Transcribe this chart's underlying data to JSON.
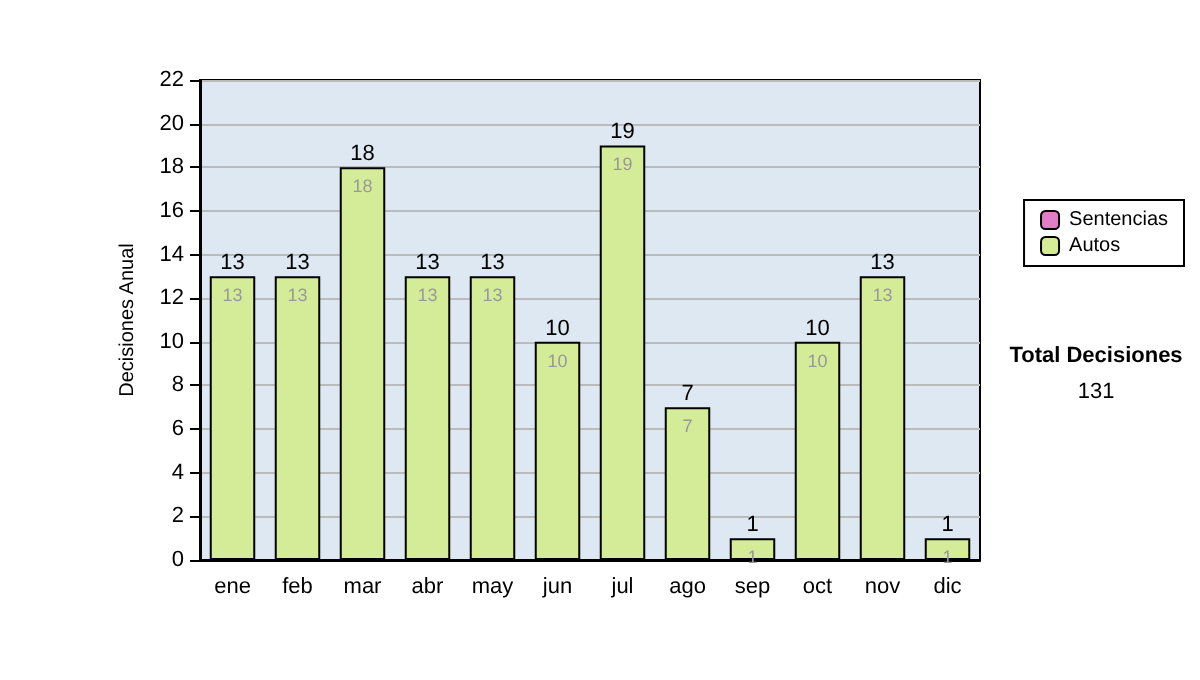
{
  "chart_data": {
    "type": "bar",
    "stacked": true,
    "ylabel": "Decisiones Anual",
    "categories": [
      "ene",
      "feb",
      "mar",
      "abr",
      "may",
      "jun",
      "jul",
      "ago",
      "sep",
      "oct",
      "nov",
      "dic"
    ],
    "series": [
      {
        "name": "Sentencias",
        "color": "#e07ec8",
        "values": [
          0,
          0,
          0,
          0,
          0,
          0,
          0,
          0,
          0,
          0,
          0,
          0
        ]
      },
      {
        "name": "Autos",
        "color": "#d4ec98",
        "values": [
          13,
          13,
          18,
          13,
          13,
          10,
          19,
          7,
          1,
          10,
          13,
          1
        ],
        "data_labels": true
      }
    ],
    "totals": [
      "13",
      "13",
      "18",
      "13",
      "13",
      "10",
      "19",
      "7",
      "1",
      "10",
      "13",
      "1"
    ],
    "ylim": [
      0,
      22
    ],
    "yticks": [
      0,
      2,
      4,
      6,
      8,
      10,
      12,
      14,
      16,
      18,
      20,
      22
    ],
    "grid": "y",
    "legend": "right",
    "annotations": [
      "Total Decisiones",
      "131"
    ]
  }
}
